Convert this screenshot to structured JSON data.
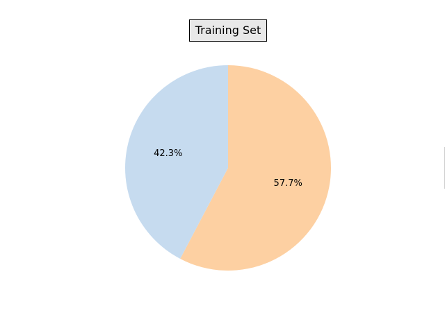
{
  "chart_data": {
    "type": "pie",
    "title": "Training Set",
    "slices": [
      {
        "label": "",
        "value": 57.7,
        "display": "57.7%",
        "color": "#fdd0a2"
      },
      {
        "label": "",
        "value": 42.3,
        "display": "42.3%",
        "color": "#c6dbef"
      }
    ],
    "start_angle_deg": 90,
    "direction": "clockwise",
    "legend": "right"
  }
}
